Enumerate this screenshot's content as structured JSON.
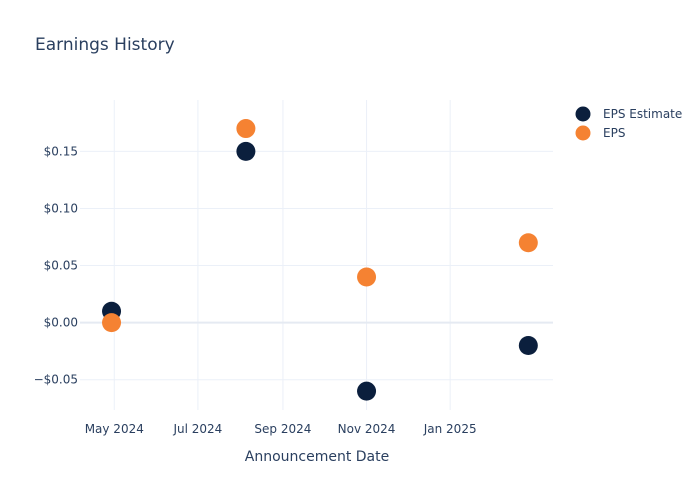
{
  "chart_data": {
    "type": "scatter",
    "title": "Earnings History",
    "xlabel": "Announcement Date",
    "ylabel": "",
    "x_ticks": [
      {
        "date": "2024-05-01",
        "label": "May 2024"
      },
      {
        "date": "2024-07-01",
        "label": "Jul 2024"
      },
      {
        "date": "2024-09-01",
        "label": "Sep 2024"
      },
      {
        "date": "2024-11-01",
        "label": "Nov 2024"
      },
      {
        "date": "2025-01-01",
        "label": "Jan 2025"
      }
    ],
    "y_ticks": [
      {
        "value": -0.05,
        "label": "−$0.05"
      },
      {
        "value": 0.0,
        "label": "$0.00"
      },
      {
        "value": 0.05,
        "label": "$0.05"
      },
      {
        "value": 0.1,
        "label": "$0.10"
      },
      {
        "value": 0.15,
        "label": "$0.15"
      }
    ],
    "xlim": [
      "2024-04-06",
      "2025-03-17"
    ],
    "ylim": [
      -0.0765,
      0.195
    ],
    "grid": true,
    "legend_position": "top-right",
    "series": [
      {
        "name": "EPS Estimate",
        "color": "#0b1f3d",
        "points": [
          {
            "x": "2024-04-29",
            "y": 0.01
          },
          {
            "x": "2024-08-05",
            "y": 0.15
          },
          {
            "x": "2024-11-01",
            "y": -0.06
          },
          {
            "x": "2025-02-27",
            "y": -0.02
          }
        ]
      },
      {
        "name": "EPS",
        "color": "#f58232",
        "points": [
          {
            "x": "2024-04-29",
            "y": 0.0
          },
          {
            "x": "2024-08-05",
            "y": 0.17
          },
          {
            "x": "2024-11-01",
            "y": 0.04
          },
          {
            "x": "2025-02-27",
            "y": 0.07
          }
        ]
      }
    ]
  }
}
